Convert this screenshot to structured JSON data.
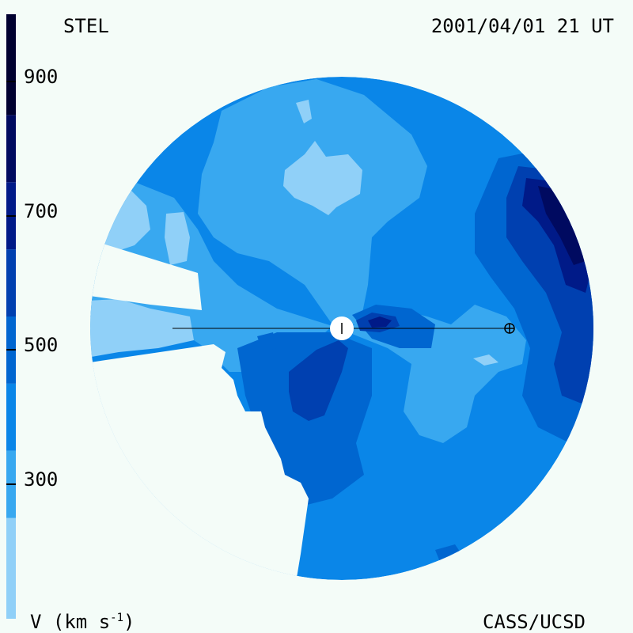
{
  "header": {
    "left_label": "STEL",
    "right_label": "2001/04/01 21 UT"
  },
  "footer": {
    "unit_main": "V (km s",
    "unit_exp": "-1",
    "unit_close": ")",
    "credit": "CASS/UCSD"
  },
  "colorbar": {
    "ticks": [
      {
        "label": "900",
        "value": 900
      },
      {
        "label": "700",
        "value": 700
      },
      {
        "label": "500",
        "value": 500
      },
      {
        "label": "300",
        "value": 300
      }
    ],
    "bands": [
      {
        "from": 0,
        "to": 250,
        "color": "#90d0f8"
      },
      {
        "from": 250,
        "to": 350,
        "color": "#38a8f0"
      },
      {
        "from": 350,
        "to": 450,
        "color": "#0a86e8"
      },
      {
        "from": 450,
        "to": 550,
        "color": "#0066d0"
      },
      {
        "from": 550,
        "to": 650,
        "color": "#0040b0"
      },
      {
        "from": 650,
        "to": 750,
        "color": "#001a88"
      },
      {
        "from": 750,
        "to": 850,
        "color": "#000a60"
      },
      {
        "from": 850,
        "to": 1000,
        "color": "#000030"
      }
    ]
  },
  "colors": {
    "background": "#f4fcf8",
    "v_lightest": "#90d0f8",
    "v_light": "#38a8f0",
    "v_mid": "#0a86e8",
    "v_mid_dark": "#0066d0",
    "v_dark": "#0040b0",
    "v_darker": "#001a88",
    "v_darkest": "#000a60"
  },
  "icons": {
    "sun": "sun-icon",
    "earth": "earth-icon"
  }
}
